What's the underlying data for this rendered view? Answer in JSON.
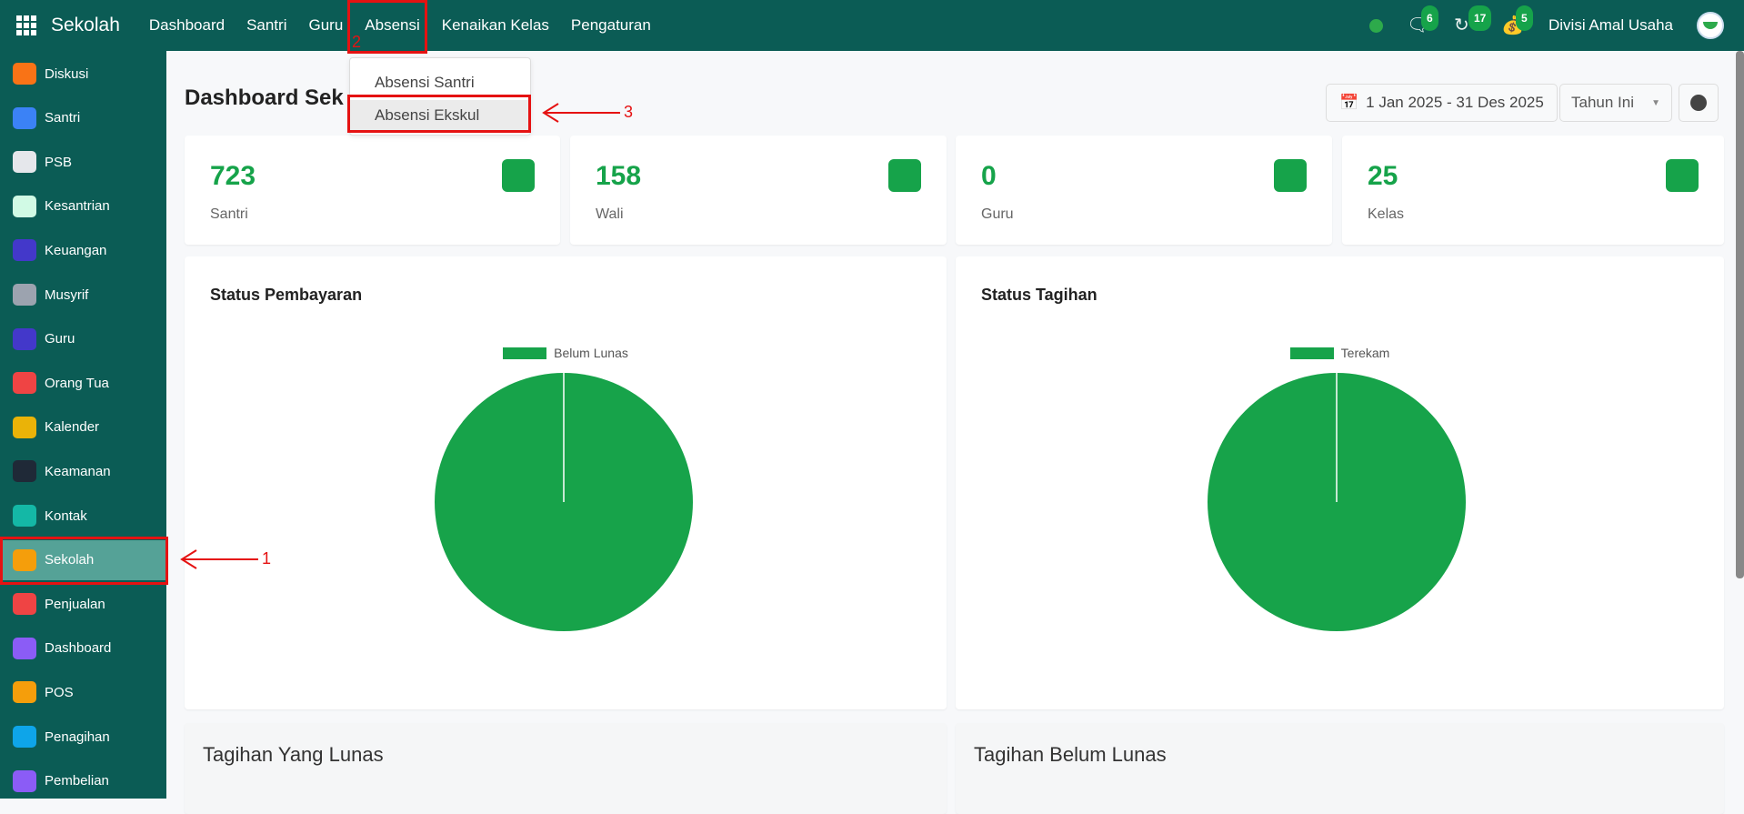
{
  "topbar": {
    "grid_icon": "apps-grid-icon",
    "brand": "Sekolah",
    "nav": [
      "Dashboard",
      "Santri",
      "Guru",
      "Absensi",
      "Kenaikan Kelas",
      "Pengaturan"
    ],
    "status_color": "#2daa4b",
    "chat_count": "6",
    "history_count": "17",
    "payment_count": "5",
    "user": "Divisi Amal Usaha"
  },
  "dropdown": {
    "items": [
      "Absensi Santri",
      "Absensi Ekskul"
    ]
  },
  "sidebar": {
    "items": [
      "Diskusi",
      "Santri",
      "PSB",
      "Kesantrian",
      "Keuangan",
      "Musyrif",
      "Guru",
      "Orang Tua",
      "Kalender",
      "Keamanan",
      "Kontak",
      "Sekolah",
      "Penjualan",
      "Dashboard",
      "POS",
      "Penagihan",
      "Pembelian"
    ],
    "active": "Sekolah"
  },
  "page": {
    "title": "Dashboard Sek",
    "date_range": "1 Jan 2025 - 31 Des 2025",
    "period": "Tahun Ini"
  },
  "stats": [
    {
      "value": "723",
      "label": "Santri",
      "icon": "graduate-icon"
    },
    {
      "value": "158",
      "label": "Wali",
      "icon": "users-icon"
    },
    {
      "value": "0",
      "label": "Guru",
      "icon": "teacher-icon"
    },
    {
      "value": "25",
      "label": "Kelas",
      "icon": "ruler-icon"
    }
  ],
  "chart_data": [
    {
      "type": "pie",
      "title": "Status Pembayaran",
      "categories": [
        "Belum Lunas"
      ],
      "values": [
        100
      ],
      "legend": "top",
      "colors": [
        "#17a34a"
      ]
    },
    {
      "type": "pie",
      "title": "Status Tagihan",
      "categories": [
        "Terekam"
      ],
      "values": [
        100
      ],
      "legend": "top",
      "colors": [
        "#17a34a"
      ]
    }
  ],
  "bottom": {
    "left_title": "Tagihan Yang Lunas",
    "right_title": "Tagihan Belum Lunas"
  },
  "annotations": [
    "1",
    "2",
    "3"
  ],
  "colors": {
    "primary": "#0b5c55",
    "accent": "#16a34a",
    "highlight": "#55a297",
    "annotation": "#e51212"
  }
}
